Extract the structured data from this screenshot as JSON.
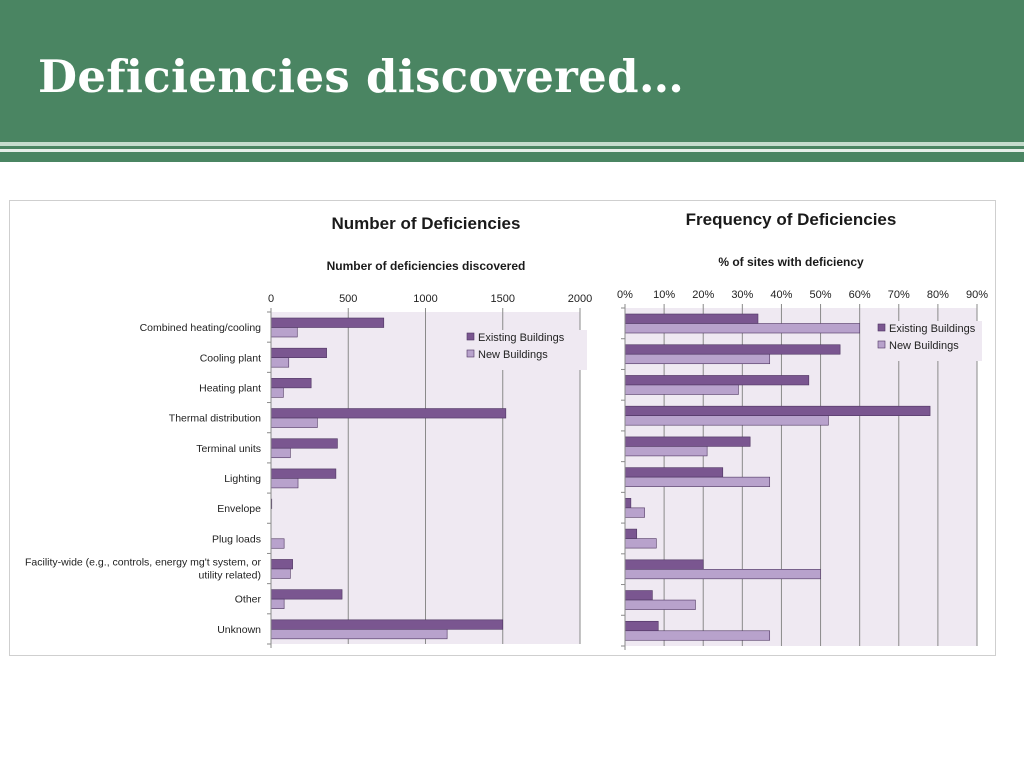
{
  "slide": {
    "title": "Deficiencies discovered…"
  },
  "colors": {
    "header_green": "#4a8562",
    "existing": "#7a5690",
    "new": "#b8a2cc",
    "plot_bg": "#efe9f2"
  },
  "chart_data": [
    {
      "type": "bar",
      "orientation": "horizontal",
      "title": "Number of Deficiencies",
      "subtitle": "Number of deficiencies discovered",
      "xlim": [
        0,
        2000
      ],
      "xticks": [
        0,
        500,
        1000,
        1500,
        2000
      ],
      "xtick_labels": [
        "0",
        "500",
        "1000",
        "1500",
        "2000"
      ],
      "categories": [
        "Combined heating/cooling",
        "Cooling plant",
        "Heating plant",
        "Thermal distribution",
        "Terminal units",
        "Lighting",
        "Envelope",
        "Plug loads",
        [
          "Facility-wide (e.g., controls, energy mg't system, or",
          "utility related)"
        ],
        "Other",
        "Unknown"
      ],
      "series": [
        {
          "name": "Existing Buildings",
          "color": "#7a5690",
          "values": [
            730,
            360,
            260,
            1520,
            430,
            420,
            5,
            0,
            140,
            460,
            1500
          ]
        },
        {
          "name": "New Buildings",
          "color": "#b8a2cc",
          "values": [
            170,
            115,
            80,
            300,
            125,
            175,
            0,
            85,
            125,
            85,
            1140
          ]
        }
      ],
      "legend": "top-right",
      "grid": true
    },
    {
      "type": "bar",
      "orientation": "horizontal",
      "title": "Frequency of Deficiencies",
      "subtitle": "% of sites with deficiency",
      "xlim": [
        0,
        90
      ],
      "xticks": [
        0,
        10,
        20,
        30,
        40,
        50,
        60,
        70,
        80,
        90
      ],
      "xtick_labels": [
        "0%",
        "10%",
        "20%",
        "30%",
        "40%",
        "50%",
        "60%",
        "70%",
        "80%",
        "90%"
      ],
      "categories": [
        "Combined heating/cooling",
        "Cooling plant",
        "Heating plant",
        "Thermal distribution",
        "Terminal units",
        "Lighting",
        "Envelope",
        "Plug loads",
        "Facility-wide (e.g., controls, energy mg't system, or utility related)",
        "Other",
        "Unknown"
      ],
      "series": [
        {
          "name": "Existing Buildings",
          "color": "#7a5690",
          "values": [
            34,
            55,
            47,
            78,
            32,
            25,
            1.5,
            3,
            20,
            7,
            8.5
          ]
        },
        {
          "name": "New Buildings",
          "color": "#b8a2cc",
          "values": [
            60,
            37,
            29,
            52,
            21,
            37,
            5,
            8,
            50,
            18,
            37
          ]
        }
      ],
      "legend": "top-right",
      "grid": true
    }
  ]
}
